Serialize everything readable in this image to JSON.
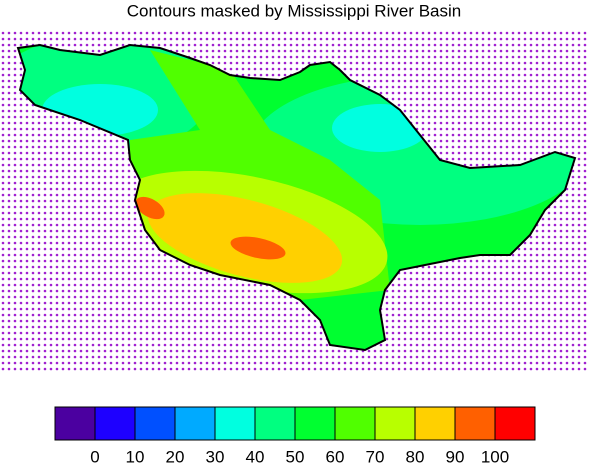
{
  "chart_data": {
    "type": "contour",
    "title": "Contours masked by Mississippi River Basin",
    "levels": [
      0,
      10,
      20,
      30,
      40,
      50,
      60,
      70,
      80,
      90,
      100
    ],
    "colors": [
      "#4b00a0",
      "#1e00ff",
      "#0050ff",
      "#00aaff",
      "#00ffe0",
      "#00ff80",
      "#00ff30",
      "#50ff00",
      "#b8ff00",
      "#ffd000",
      "#ff6000",
      "#ff0000"
    ],
    "mask_dot_color": "#a020d0"
  }
}
